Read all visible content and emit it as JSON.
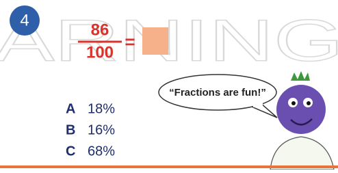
{
  "question": {
    "number": "4",
    "numerator": "86",
    "denominator": "100",
    "equals": "="
  },
  "watermark": "ARNING",
  "speech": "“Fractions are fun!”",
  "options": [
    {
      "letter": "A",
      "text": "18%"
    },
    {
      "letter": "B",
      "text": "16%"
    },
    {
      "letter": "C",
      "text": "68%"
    }
  ]
}
